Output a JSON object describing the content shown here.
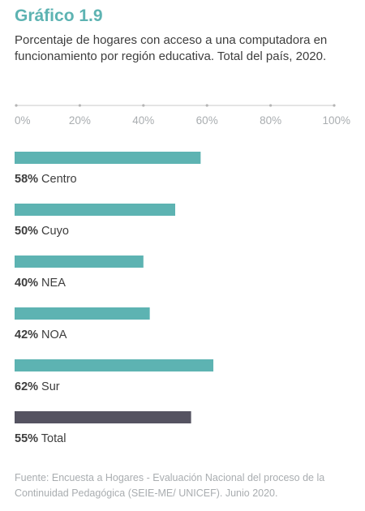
{
  "title": "Gráfico 1.9",
  "subtitle": "Porcentaje de hogares con acceso a una computadora en funcionamiento por región educativa. Total del país, 2020.",
  "source": "Fuente: Encuesta a Hogares - Evaluación Nacional del proceso de la Continuidad Pedagógica (SEIE-ME/ UNICEF). Junio 2020.",
  "colors": {
    "bar": "#5db3b2",
    "total_bar": "#555361",
    "title": "#5db3b2",
    "axis": "#c8c8c8",
    "tick_text": "#a9adb0",
    "text": "#3d3d3d"
  },
  "chart_data": {
    "type": "bar",
    "orientation": "horizontal",
    "axis_position": "top",
    "xlim": [
      0,
      100
    ],
    "ticks": [
      "0%",
      "20%",
      "40%",
      "60%",
      "80%",
      "100%"
    ],
    "tick_values": [
      0,
      20,
      40,
      60,
      80,
      100
    ],
    "categories": [
      "Centro",
      "Cuyo",
      "NEA",
      "NOA",
      "Sur",
      "Total"
    ],
    "values": [
      58,
      50,
      40,
      42,
      62,
      55
    ],
    "value_labels": [
      "58%",
      "50%",
      "40%",
      "42%",
      "62%",
      "55%"
    ],
    "highlight": [
      "Total"
    ],
    "grid": false
  }
}
